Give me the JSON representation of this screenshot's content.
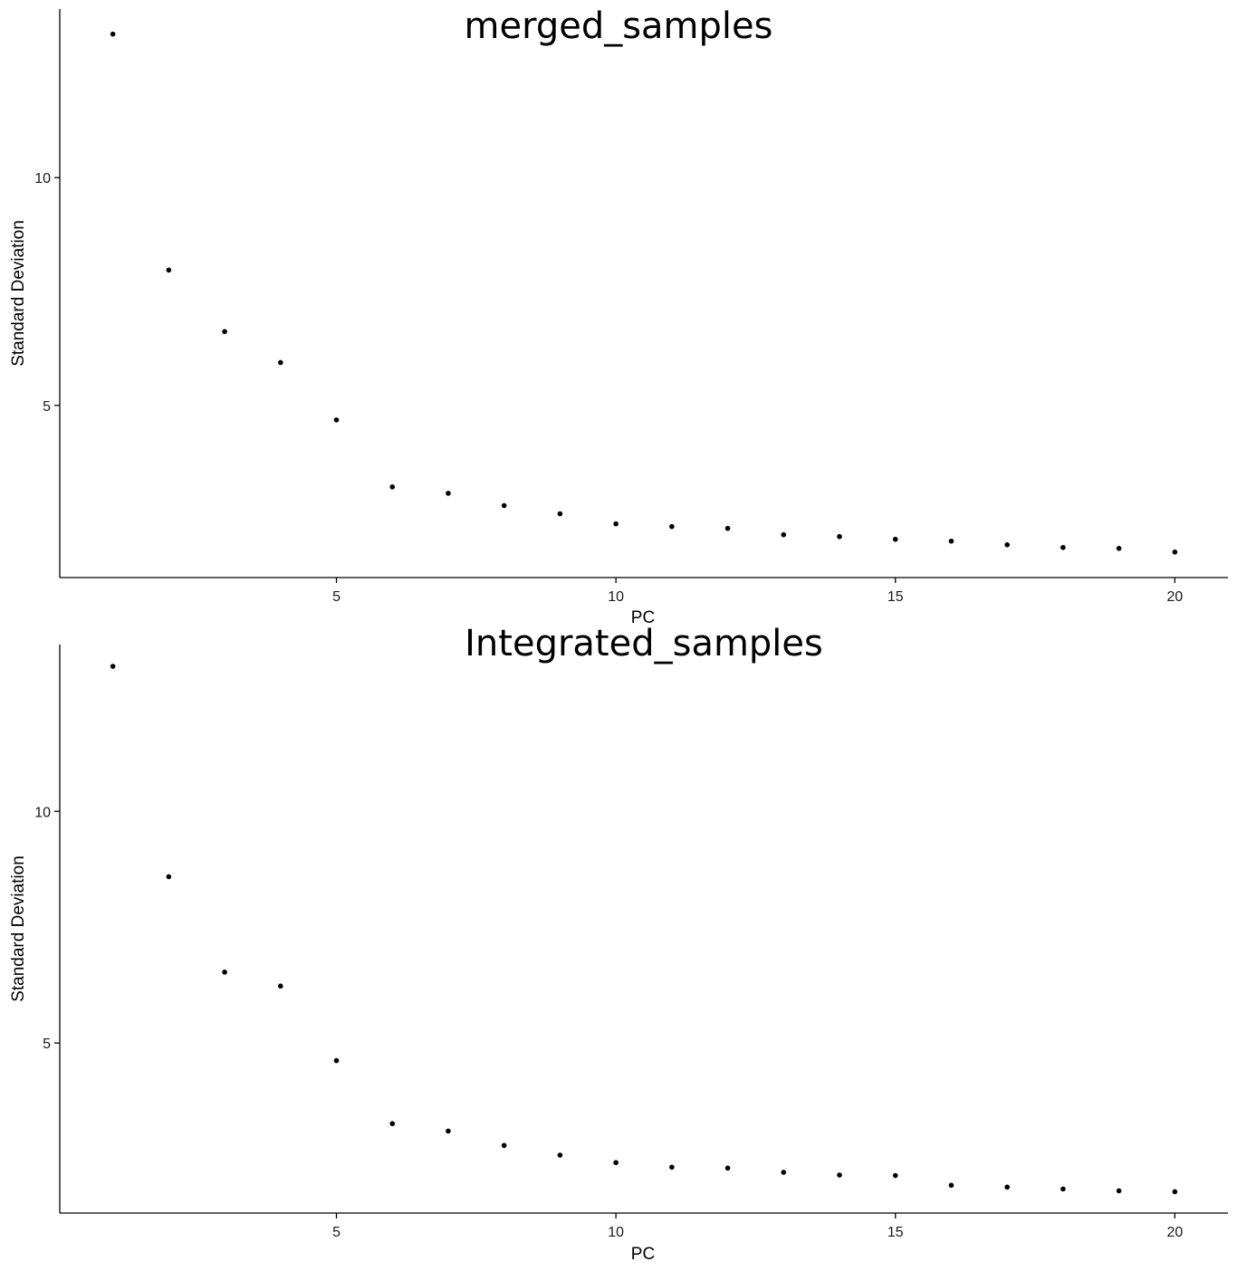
{
  "chart_data": [
    {
      "type": "scatter",
      "title": "merged_samples",
      "xlabel": "PC",
      "ylabel": "Standard Deviation",
      "x_ticks": [
        5,
        10,
        15,
        20
      ],
      "y_ticks": [
        5,
        10
      ],
      "xlim": [
        0.05,
        20.95
      ],
      "ylim": [
        1.22,
        13.7
      ],
      "grid": false,
      "x": [
        1,
        2,
        3,
        4,
        5,
        6,
        7,
        8,
        9,
        10,
        11,
        12,
        13,
        14,
        15,
        16,
        17,
        18,
        19,
        20
      ],
      "y": [
        13.15,
        7.97,
        6.62,
        5.94,
        4.68,
        3.21,
        3.07,
        2.8,
        2.62,
        2.4,
        2.34,
        2.3,
        2.16,
        2.12,
        2.06,
        2.02,
        1.94,
        1.88,
        1.86,
        1.78
      ]
    },
    {
      "type": "scatter",
      "title": "Integrated_samples",
      "xlabel": "PC",
      "ylabel": "Standard Deviation",
      "x_ticks": [
        5,
        10,
        15,
        20
      ],
      "y_ticks": [
        5,
        10
      ],
      "xlim": [
        0.05,
        20.95
      ],
      "ylim": [
        1.33,
        13.6
      ],
      "grid": false,
      "x": [
        1,
        2,
        3,
        4,
        5,
        6,
        7,
        8,
        9,
        10,
        11,
        12,
        13,
        14,
        15,
        16,
        17,
        18,
        19,
        20
      ],
      "y": [
        13.13,
        8.59,
        6.53,
        6.23,
        4.62,
        3.26,
        3.1,
        2.79,
        2.58,
        2.42,
        2.32,
        2.3,
        2.21,
        2.15,
        2.14,
        1.93,
        1.89,
        1.85,
        1.81,
        1.79
      ]
    }
  ]
}
